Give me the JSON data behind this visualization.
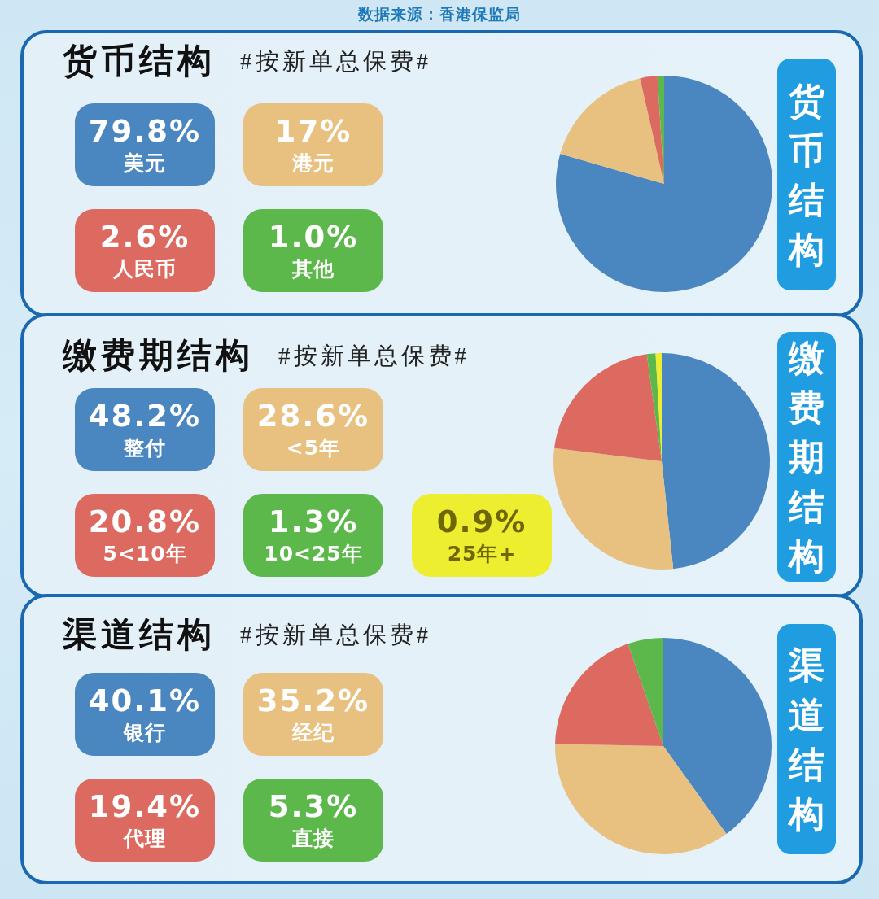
{
  "chart_data": [
    {
      "type": "pie",
      "title": "货币结构",
      "subtitle": "#按新单总保费#",
      "annotations": [
        "数据来源：香港保监局"
      ],
      "categories": [
        "美元",
        "港元",
        "人民币",
        "其他"
      ],
      "values": [
        79.8,
        17,
        2.6,
        1.0
      ],
      "value_labels": [
        "79.8%",
        "17%",
        "2.6%",
        "1.0%"
      ],
      "colors": [
        "#4a86c0",
        "#e8c080",
        "#dc6a60",
        "#5cb84a"
      ],
      "legend": "left"
    },
    {
      "type": "pie",
      "title": "缴费期结构",
      "subtitle": "#按新单总保费#",
      "categories": [
        "整付",
        "<5年",
        "5<10年",
        "10<25年",
        "25年+"
      ],
      "values": [
        48.2,
        28.6,
        20.8,
        1.3,
        0.9
      ],
      "value_labels": [
        "48.2%",
        "28.6%",
        "20.8%",
        "1.3%",
        "0.9%"
      ],
      "colors": [
        "#4a86c0",
        "#e8c080",
        "#dc6a60",
        "#5cb84a",
        "#eeee30"
      ],
      "legend": "left"
    },
    {
      "type": "pie",
      "title": "渠道结构",
      "subtitle": "#按新单总保费#",
      "categories": [
        "银行",
        "经纪",
        "代理",
        "直接"
      ],
      "values": [
        40.1,
        35.2,
        19.4,
        5.3
      ],
      "value_labels": [
        "40.1%",
        "35.2%",
        "19.4%",
        "5.3%"
      ],
      "colors": [
        "#4a86c0",
        "#e8c080",
        "#dc6a60",
        "#5cb84a"
      ],
      "legend": "left"
    }
  ]
}
